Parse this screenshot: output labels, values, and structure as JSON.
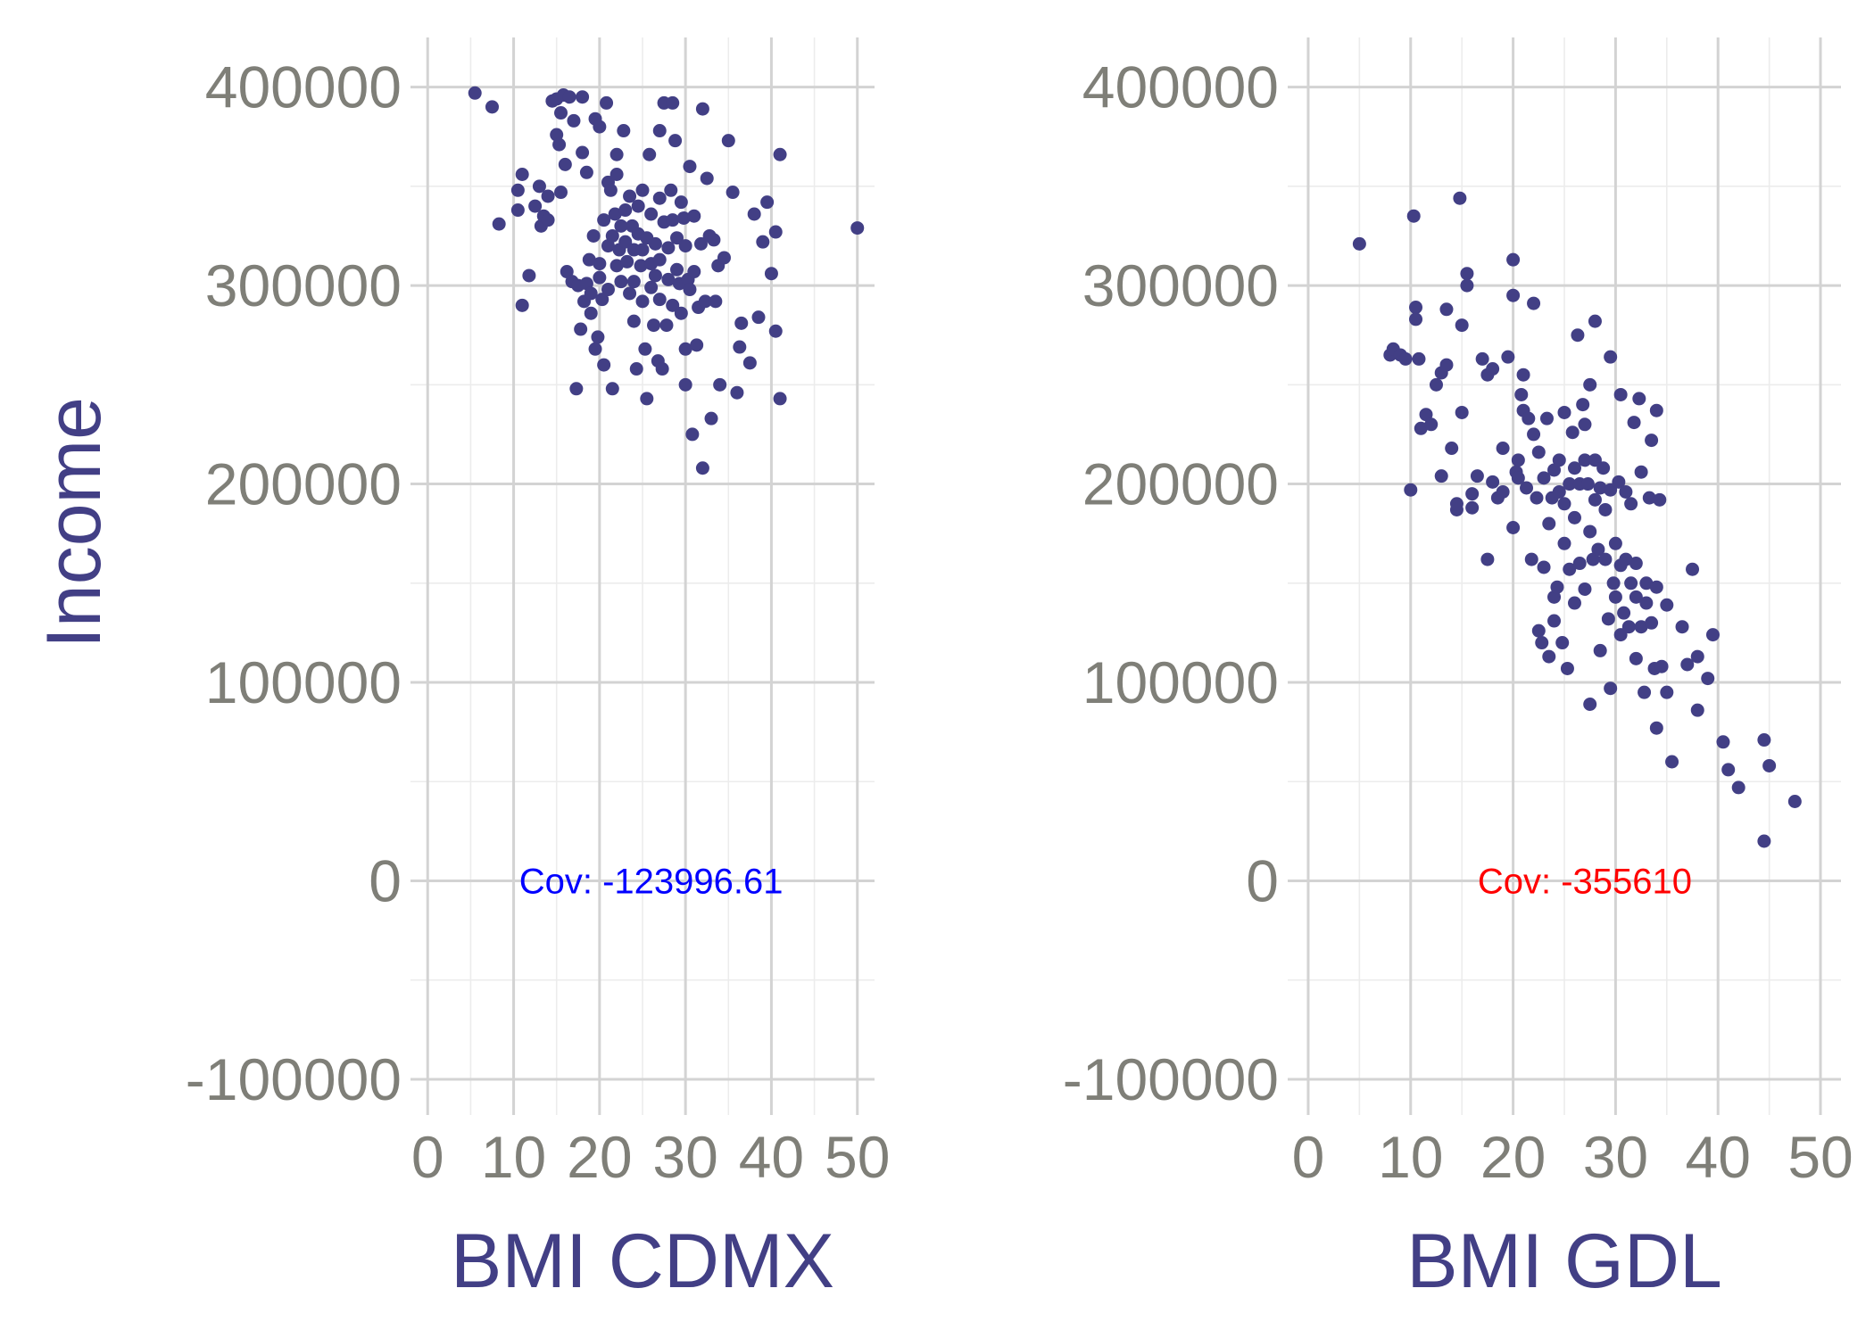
{
  "chart_data": [
    {
      "type": "scatter",
      "xlabel": "BMI CDMX",
      "ylabel": "Income",
      "xlim": [
        -2,
        52
      ],
      "ylim": [
        -118000,
        425000
      ],
      "x_ticks": [
        0,
        10,
        20,
        30,
        40,
        50
      ],
      "y_ticks": [
        -100000,
        0,
        100000,
        200000,
        300000,
        400000
      ],
      "x_tick_labels": [
        "0",
        "10",
        "20",
        "30",
        "40",
        "50"
      ],
      "y_tick_labels": [
        "-100000",
        "0",
        "100000",
        "200000",
        "300000",
        "400000"
      ],
      "grid": true,
      "point_color": "#423f85",
      "annotation": {
        "text": "Cov: -123996.61",
        "x": 26,
        "y": 0,
        "color": "#0000ff"
      },
      "points": [
        [
          5.5,
          397000
        ],
        [
          7.5,
          390000
        ],
        [
          8.3,
          331000
        ],
        [
          10.5,
          348000
        ],
        [
          10.5,
          338000
        ],
        [
          11.0,
          356000
        ],
        [
          11.0,
          290000
        ],
        [
          11.8,
          305000
        ],
        [
          12.5,
          340000
        ],
        [
          13.0,
          350000
        ],
        [
          13.2,
          330000
        ],
        [
          13.5,
          335000
        ],
        [
          14.0,
          345000
        ],
        [
          14.0,
          333000
        ],
        [
          14.5,
          393000
        ],
        [
          15.0,
          394000
        ],
        [
          15.0,
          376000
        ],
        [
          15.3,
          371000
        ],
        [
          15.5,
          347000
        ],
        [
          15.5,
          387000
        ],
        [
          15.8,
          396000
        ],
        [
          16.0,
          361000
        ],
        [
          16.2,
          307000
        ],
        [
          16.5,
          395000
        ],
        [
          16.8,
          302000
        ],
        [
          17.0,
          383000
        ],
        [
          17.3,
          248000
        ],
        [
          17.5,
          300000
        ],
        [
          17.8,
          278000
        ],
        [
          18.0,
          395000
        ],
        [
          18.0,
          367000
        ],
        [
          18.2,
          292000
        ],
        [
          18.5,
          301000
        ],
        [
          18.5,
          357000
        ],
        [
          18.8,
          313000
        ],
        [
          19.0,
          296000
        ],
        [
          19.0,
          286000
        ],
        [
          19.3,
          325000
        ],
        [
          19.5,
          384000
        ],
        [
          19.5,
          268000
        ],
        [
          19.8,
          274000
        ],
        [
          20.0,
          304000
        ],
        [
          20.0,
          311000
        ],
        [
          20.0,
          380000
        ],
        [
          20.3,
          293000
        ],
        [
          20.5,
          333000
        ],
        [
          20.5,
          260000
        ],
        [
          20.8,
          392000
        ],
        [
          21.0,
          352000
        ],
        [
          21.0,
          320000
        ],
        [
          21.0,
          298000
        ],
        [
          21.3,
          348000
        ],
        [
          21.5,
          325000
        ],
        [
          21.5,
          248000
        ],
        [
          21.8,
          336000
        ],
        [
          22.0,
          310000
        ],
        [
          22.0,
          366000
        ],
        [
          22.0,
          356000
        ],
        [
          22.3,
          318000
        ],
        [
          22.5,
          330000
        ],
        [
          22.5,
          302000
        ],
        [
          22.8,
          378000
        ],
        [
          23.0,
          338000
        ],
        [
          23.0,
          322000
        ],
        [
          23.2,
          312000
        ],
        [
          23.5,
          345000
        ],
        [
          23.5,
          296000
        ],
        [
          23.8,
          330000
        ],
        [
          24.0,
          318000
        ],
        [
          24.0,
          302000
        ],
        [
          24.0,
          282000
        ],
        [
          24.3,
          258000
        ],
        [
          24.5,
          340000
        ],
        [
          24.5,
          326000
        ],
        [
          24.8,
          310000
        ],
        [
          25.0,
          348000
        ],
        [
          25.0,
          318000
        ],
        [
          25.0,
          292000
        ],
        [
          25.3,
          268000
        ],
        [
          25.5,
          324000
        ],
        [
          25.5,
          243000
        ],
        [
          25.8,
          366000
        ],
        [
          26.0,
          336000
        ],
        [
          26.0,
          311000
        ],
        [
          26.0,
          299000
        ],
        [
          26.3,
          280000
        ],
        [
          26.5,
          321000
        ],
        [
          26.5,
          305000
        ],
        [
          26.8,
          262000
        ],
        [
          27.0,
          378000
        ],
        [
          27.0,
          344000
        ],
        [
          27.0,
          313000
        ],
        [
          27.0,
          293000
        ],
        [
          27.3,
          258000
        ],
        [
          27.5,
          392000
        ],
        [
          27.5,
          332000
        ],
        [
          27.8,
          280000
        ],
        [
          28.0,
          319000
        ],
        [
          28.0,
          303000
        ],
        [
          28.3,
          348000
        ],
        [
          28.5,
          392000
        ],
        [
          28.5,
          333000
        ],
        [
          28.5,
          290000
        ],
        [
          28.8,
          373000
        ],
        [
          29.0,
          324000
        ],
        [
          29.0,
          308000
        ],
        [
          29.3,
          301000
        ],
        [
          29.5,
          342000
        ],
        [
          29.5,
          286000
        ],
        [
          29.8,
          334000
        ],
        [
          30.0,
          320000
        ],
        [
          30.0,
          250000
        ],
        [
          30.0,
          268000
        ],
        [
          30.3,
          303000
        ],
        [
          30.5,
          360000
        ],
        [
          30.5,
          298000
        ],
        [
          30.8,
          225000
        ],
        [
          31.0,
          335000
        ],
        [
          31.0,
          307000
        ],
        [
          31.3,
          270000
        ],
        [
          31.5,
          289000
        ],
        [
          31.8,
          321000
        ],
        [
          32.0,
          389000
        ],
        [
          32.0,
          208000
        ],
        [
          32.3,
          292000
        ],
        [
          32.5,
          354000
        ],
        [
          32.8,
          325000
        ],
        [
          33.0,
          233000
        ],
        [
          33.3,
          323000
        ],
        [
          33.5,
          292000
        ],
        [
          33.8,
          310000
        ],
        [
          34.0,
          250000
        ],
        [
          34.5,
          314000
        ],
        [
          35.0,
          373000
        ],
        [
          35.5,
          347000
        ],
        [
          36.0,
          246000
        ],
        [
          36.3,
          269000
        ],
        [
          36.5,
          281000
        ],
        [
          37.5,
          261000
        ],
        [
          38.0,
          336000
        ],
        [
          38.5,
          284000
        ],
        [
          39.0,
          322000
        ],
        [
          39.5,
          342000
        ],
        [
          40.0,
          306000
        ],
        [
          40.5,
          327000
        ],
        [
          40.5,
          277000
        ],
        [
          41.0,
          366000
        ],
        [
          41.0,
          243000
        ],
        [
          50.0,
          329000
        ]
      ]
    },
    {
      "type": "scatter",
      "xlabel": "BMI GDL",
      "ylabel": "",
      "xlim": [
        -2,
        52
      ],
      "ylim": [
        -118000,
        425000
      ],
      "x_ticks": [
        0,
        10,
        20,
        30,
        40,
        50
      ],
      "y_ticks": [
        -100000,
        0,
        100000,
        200000,
        300000,
        400000
      ],
      "x_tick_labels": [
        "0",
        "10",
        "20",
        "30",
        "40",
        "50"
      ],
      "y_tick_labels": [
        "-100000",
        "0",
        "100000",
        "200000",
        "300000",
        "400000"
      ],
      "grid": true,
      "point_color": "#423f85",
      "annotation": {
        "text": "Cov: -355610",
        "x": 27,
        "y": 0,
        "color": "#ff0000"
      },
      "points": [
        [
          5.0,
          321000
        ],
        [
          8.0,
          265000
        ],
        [
          8.3,
          268000
        ],
        [
          9.0,
          265000
        ],
        [
          9.5,
          263000
        ],
        [
          10.0,
          197000
        ],
        [
          10.3,
          335000
        ],
        [
          10.5,
          289000
        ],
        [
          10.5,
          283000
        ],
        [
          10.8,
          263000
        ],
        [
          11.0,
          228000
        ],
        [
          11.5,
          235000
        ],
        [
          12.0,
          230000
        ],
        [
          12.5,
          250000
        ],
        [
          13.0,
          204000
        ],
        [
          13.0,
          256000
        ],
        [
          13.5,
          260000
        ],
        [
          13.5,
          288000
        ],
        [
          14.0,
          218000
        ],
        [
          14.5,
          187000
        ],
        [
          14.5,
          190000
        ],
        [
          14.8,
          344000
        ],
        [
          15.0,
          280000
        ],
        [
          15.0,
          236000
        ],
        [
          15.5,
          306000
        ],
        [
          15.5,
          300000
        ],
        [
          16.0,
          195000
        ],
        [
          16.0,
          188000
        ],
        [
          16.5,
          204000
        ],
        [
          17.0,
          263000
        ],
        [
          17.5,
          255000
        ],
        [
          17.5,
          162000
        ],
        [
          18.0,
          201000
        ],
        [
          18.0,
          258000
        ],
        [
          18.5,
          193000
        ],
        [
          19.0,
          218000
        ],
        [
          19.0,
          196000
        ],
        [
          19.5,
          264000
        ],
        [
          20.0,
          178000
        ],
        [
          20.0,
          313000
        ],
        [
          20.0,
          295000
        ],
        [
          20.3,
          206000
        ],
        [
          20.5,
          212000
        ],
        [
          20.5,
          203000
        ],
        [
          20.8,
          245000
        ],
        [
          21.0,
          255000
        ],
        [
          21.0,
          237000
        ],
        [
          21.3,
          198000
        ],
        [
          21.5,
          233000
        ],
        [
          21.8,
          162000
        ],
        [
          22.0,
          225000
        ],
        [
          22.0,
          291000
        ],
        [
          22.3,
          193000
        ],
        [
          22.5,
          216000
        ],
        [
          22.5,
          126000
        ],
        [
          22.8,
          120000
        ],
        [
          23.0,
          158000
        ],
        [
          23.0,
          203000
        ],
        [
          23.3,
          233000
        ],
        [
          23.5,
          180000
        ],
        [
          23.5,
          113000
        ],
        [
          23.8,
          193000
        ],
        [
          24.0,
          207000
        ],
        [
          24.0,
          143000
        ],
        [
          24.0,
          131000
        ],
        [
          24.3,
          148000
        ],
        [
          24.5,
          212000
        ],
        [
          24.5,
          196000
        ],
        [
          24.8,
          120000
        ],
        [
          25.0,
          236000
        ],
        [
          25.0,
          190000
        ],
        [
          25.0,
          170000
        ],
        [
          25.3,
          107000
        ],
        [
          25.5,
          200000
        ],
        [
          25.5,
          157000
        ],
        [
          25.8,
          226000
        ],
        [
          26.0,
          208000
        ],
        [
          26.0,
          183000
        ],
        [
          26.0,
          140000
        ],
        [
          26.3,
          275000
        ],
        [
          26.5,
          200000
        ],
        [
          26.5,
          160000
        ],
        [
          26.8,
          240000
        ],
        [
          27.0,
          230000
        ],
        [
          27.0,
          212000
        ],
        [
          27.0,
          147000
        ],
        [
          27.3,
          200000
        ],
        [
          27.5,
          250000
        ],
        [
          27.5,
          176000
        ],
        [
          27.5,
          89000
        ],
        [
          27.8,
          162000
        ],
        [
          28.0,
          282000
        ],
        [
          28.0,
          212000
        ],
        [
          28.0,
          192000
        ],
        [
          28.3,
          167000
        ],
        [
          28.5,
          198000
        ],
        [
          28.5,
          116000
        ],
        [
          28.8,
          208000
        ],
        [
          29.0,
          187000
        ],
        [
          29.0,
          162000
        ],
        [
          29.3,
          132000
        ],
        [
          29.5,
          264000
        ],
        [
          29.5,
          197000
        ],
        [
          29.5,
          97000
        ],
        [
          29.8,
          150000
        ],
        [
          30.0,
          170000
        ],
        [
          30.0,
          143000
        ],
        [
          30.3,
          201000
        ],
        [
          30.5,
          245000
        ],
        [
          30.5,
          159000
        ],
        [
          30.5,
          124000
        ],
        [
          30.8,
          135000
        ],
        [
          31.0,
          196000
        ],
        [
          31.0,
          162000
        ],
        [
          31.3,
          128000
        ],
        [
          31.5,
          150000
        ],
        [
          31.5,
          190000
        ],
        [
          31.8,
          231000
        ],
        [
          32.0,
          160000
        ],
        [
          32.0,
          143000
        ],
        [
          32.0,
          112000
        ],
        [
          32.3,
          243000
        ],
        [
          32.5,
          206000
        ],
        [
          32.5,
          128000
        ],
        [
          32.8,
          95000
        ],
        [
          33.0,
          150000
        ],
        [
          33.0,
          140000
        ],
        [
          33.3,
          193000
        ],
        [
          33.5,
          222000
        ],
        [
          33.5,
          130000
        ],
        [
          33.8,
          107000
        ],
        [
          34.0,
          237000
        ],
        [
          34.0,
          148000
        ],
        [
          34.0,
          77000
        ],
        [
          34.3,
          192000
        ],
        [
          34.5,
          108000
        ],
        [
          35.0,
          95000
        ],
        [
          35.0,
          139000
        ],
        [
          35.5,
          60000
        ],
        [
          36.5,
          128000
        ],
        [
          37.0,
          109000
        ],
        [
          37.5,
          157000
        ],
        [
          38.0,
          113000
        ],
        [
          38.0,
          86000
        ],
        [
          39.0,
          102000
        ],
        [
          39.5,
          124000
        ],
        [
          40.5,
          70000
        ],
        [
          41.0,
          56000
        ],
        [
          42.0,
          47000
        ],
        [
          44.5,
          71000
        ],
        [
          44.5,
          20000
        ],
        [
          45.0,
          58000
        ],
        [
          47.5,
          40000
        ]
      ]
    }
  ]
}
